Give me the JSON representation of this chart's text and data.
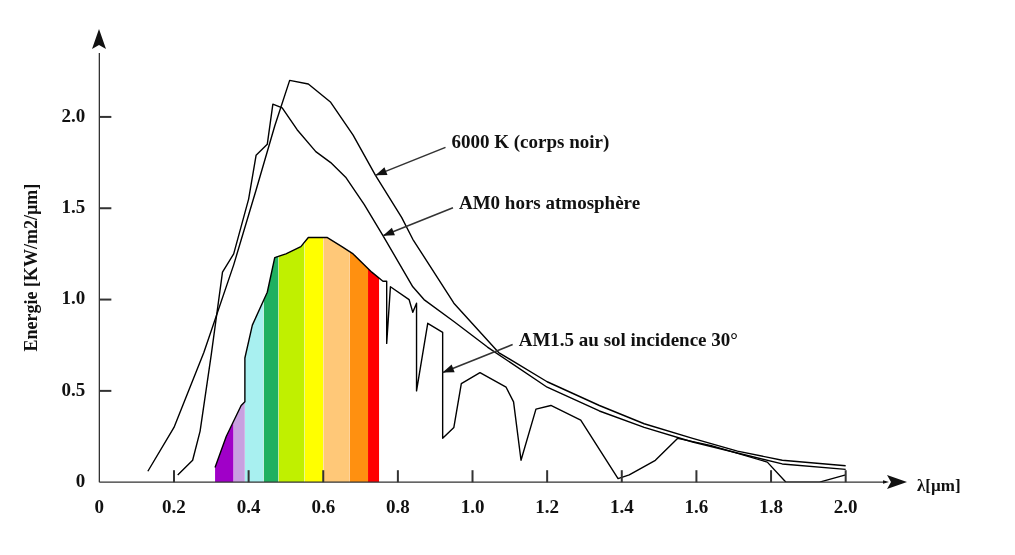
{
  "chart_data": {
    "type": "line",
    "xlabel": "λ[µm]",
    "ylabel": "Energie [KW/m2/µm]",
    "xlim": [
      0,
      2.1
    ],
    "ylim": [
      0,
      2.35
    ],
    "xticks": [
      0,
      0.2,
      0.4,
      0.6,
      0.8,
      {
        "value": 1.0,
        "label": "1.0"
      },
      1.2,
      1.4,
      1.6,
      1.8,
      {
        "value": 2.0,
        "label": "2.0"
      }
    ],
    "yticks": [
      0,
      0.5,
      {
        "value": 1.0,
        "label": "1.0"
      },
      1.5,
      {
        "value": 2.0,
        "label": "2.0"
      }
    ],
    "marker": "none",
    "line_style": "solid",
    "series": [
      {
        "type": "area",
        "color": "#a000c8",
        "x": [
          0.31,
          0.34,
          0.36
        ],
        "values": [
          0.08,
          0.25,
          0.33
        ]
      },
      {
        "type": "area",
        "color": "#c8a0e0",
        "x": [
          0.36,
          0.38,
          0.39
        ],
        "values": [
          0.33,
          0.42,
          0.44
        ]
      },
      {
        "type": "area",
        "color": "#a8f0f0",
        "x": [
          0.39,
          0.39,
          0.41,
          0.44
        ],
        "values": [
          0.44,
          0.68,
          0.86,
          0.99
        ]
      },
      {
        "type": "area",
        "color": "#20b060",
        "x": [
          0.44,
          0.45,
          0.47,
          0.48
        ],
        "values": [
          0.99,
          1.04,
          1.23,
          1.24
        ]
      },
      {
        "type": "area",
        "color": "#c0f000",
        "x": [
          0.48,
          0.5,
          0.54,
          0.55
        ],
        "values": [
          1.24,
          1.25,
          1.29,
          1.31
        ]
      },
      {
        "type": "area",
        "color": "#ffff00",
        "x": [
          0.55,
          0.56,
          0.6
        ],
        "values": [
          1.31,
          1.34,
          1.34
        ]
      },
      {
        "type": "area",
        "color": "#ffc878",
        "x": [
          0.6,
          0.61,
          0.65,
          0.67
        ],
        "values": [
          1.34,
          1.34,
          1.29,
          1.26
        ]
      },
      {
        "type": "area",
        "color": "#ff9010",
        "x": [
          0.67,
          0.68,
          0.72
        ],
        "values": [
          1.26,
          1.25,
          1.17
        ]
      },
      {
        "type": "area",
        "color": "#ff0000",
        "x": [
          0.72,
          0.73,
          0.75
        ],
        "values": [
          1.17,
          1.15,
          1.12
        ]
      },
      {
        "color": "#000000",
        "x": [
          0.13,
          0.2,
          0.28,
          0.36,
          0.42,
          0.47,
          0.51,
          0.56,
          0.62,
          0.68,
          0.74,
          0.81,
          0.84,
          0.95,
          1.07,
          1.2,
          1.34,
          1.46,
          1.59,
          1.71,
          1.83,
          2.0
        ],
        "values": [
          0.06,
          0.3,
          0.71,
          1.19,
          1.6,
          1.95,
          2.2,
          2.18,
          2.08,
          1.9,
          1.68,
          1.45,
          1.33,
          0.98,
          0.71,
          0.55,
          0.42,
          0.32,
          0.24,
          0.17,
          0.12,
          0.09
        ]
      },
      {
        "color": "#000000",
        "x": [
          0.21,
          0.25,
          0.27,
          0.3,
          0.33,
          0.36,
          0.4,
          0.42,
          0.45,
          0.465,
          0.49,
          0.53,
          0.58,
          0.62,
          0.66,
          0.71,
          0.76,
          0.84,
          0.87,
          0.95,
          1.04,
          1.2,
          1.34,
          1.46,
          1.59,
          1.71,
          1.83,
          2.0
        ],
        "values": [
          0.04,
          0.12,
          0.28,
          0.7,
          1.15,
          1.25,
          1.55,
          1.79,
          1.85,
          2.07,
          2.05,
          1.93,
          1.81,
          1.75,
          1.67,
          1.52,
          1.35,
          1.07,
          1.0,
          0.88,
          0.74,
          0.52,
          0.39,
          0.3,
          0.22,
          0.16,
          0.1,
          0.07
        ]
      },
      {
        "color": "#000000",
        "x": [
          0.31,
          0.34,
          0.38,
          0.39,
          0.39,
          0.41,
          0.45,
          0.47,
          0.5,
          0.54,
          0.56,
          0.61,
          0.65,
          0.68,
          0.73,
          0.76,
          0.77,
          0.77,
          0.78,
          0.83,
          0.84,
          0.85,
          0.85,
          0.88,
          0.92,
          0.92,
          0.95,
          0.97,
          1.02,
          1.09,
          1.11,
          1.13,
          1.17,
          1.21,
          1.29,
          1.39,
          1.42,
          1.49,
          1.55,
          1.64,
          1.79,
          1.84,
          1.93,
          2.0
        ],
        "values": [
          0.08,
          0.25,
          0.42,
          0.44,
          0.68,
          0.86,
          1.04,
          1.23,
          1.25,
          1.29,
          1.34,
          1.34,
          1.29,
          1.25,
          1.15,
          1.1,
          1.1,
          0.76,
          1.07,
          1.0,
          0.93,
          0.98,
          0.5,
          0.87,
          0.82,
          0.24,
          0.3,
          0.54,
          0.6,
          0.52,
          0.44,
          0.12,
          0.4,
          0.42,
          0.34,
          0.02,
          0.04,
          0.12,
          0.24,
          0.2,
          0.11,
          0.0,
          0.0,
          0.04
        ]
      }
    ],
    "annotations": [
      {
        "text": "6000 K (corps noir)",
        "x": 0.74,
        "y": 1.68
      },
      {
        "text": "AM0 hors atmosphère",
        "x": 0.76,
        "y": 1.35
      },
      {
        "text": "AM1.5 au sol incidence 30°",
        "x": 0.92,
        "y": 0.6
      }
    ]
  }
}
